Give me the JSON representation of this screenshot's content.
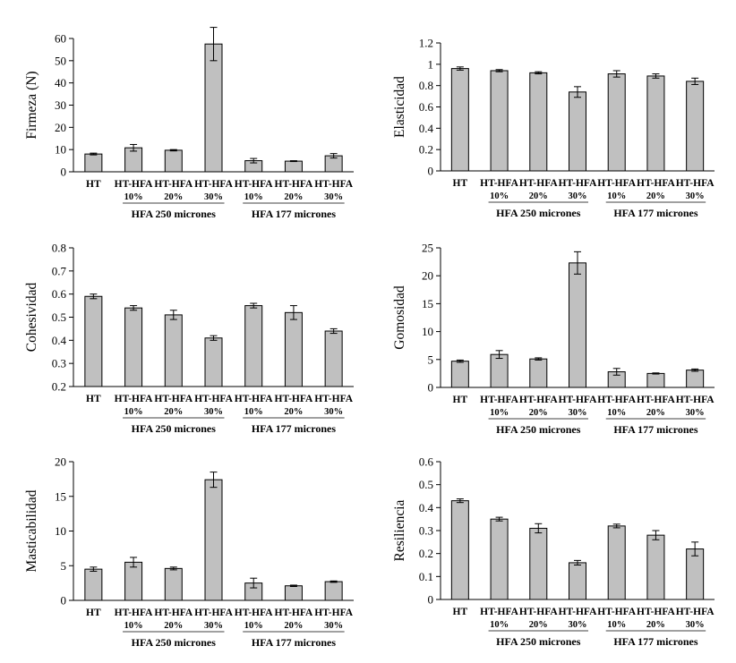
{
  "colors": {
    "bar": "#c0c0c0",
    "bar_stroke": "#000000"
  },
  "groups": [
    "HFA 250 micrones",
    "HFA 177 micrones"
  ],
  "chart_data": [
    {
      "type": "bar",
      "ylabel": "Firmeza (N)",
      "ylim": [
        0,
        60
      ],
      "yticks": [
        0,
        10,
        20,
        30,
        40,
        50,
        60
      ],
      "categories": [
        "HT",
        "HT-HFA",
        "HT-HFA",
        "HT-HFA",
        "HT-HFA",
        "HT-HFA",
        "HT-HFA"
      ],
      "subcategories": [
        "",
        "10%",
        "20%",
        "30%",
        "10%",
        "20%",
        "30%"
      ],
      "values": [
        8.0,
        10.8,
        9.7,
        57.5,
        5.0,
        4.8,
        7.2
      ],
      "errors": [
        0.4,
        1.5,
        0.3,
        7.5,
        1.0,
        0.2,
        1.0
      ]
    },
    {
      "type": "bar",
      "ylabel": "Elasticidad",
      "ylim": [
        0,
        1.2
      ],
      "yticks": [
        "0",
        "0.2",
        "0.4",
        "0.6",
        "0.8",
        "1",
        "1.2"
      ],
      "categories": [
        "HT",
        "HT-HFA",
        "HT-HFA",
        "HT-HFA",
        "HT-HFA",
        "HT-HFA",
        "HT-HFA"
      ],
      "subcategories": [
        "",
        "10%",
        "20%",
        "30%",
        "10%",
        "20%",
        "30%"
      ],
      "values": [
        0.96,
        0.94,
        0.92,
        0.74,
        0.91,
        0.89,
        0.84
      ],
      "errors": [
        0.015,
        0.01,
        0.01,
        0.05,
        0.03,
        0.02,
        0.03
      ]
    },
    {
      "type": "bar",
      "ylabel": "Cohesividad",
      "ylim": [
        0.2,
        0.8
      ],
      "yticks": [
        "0.2",
        "0.3",
        "0.4",
        "0.5",
        "0.6",
        "0.7",
        "0.8"
      ],
      "categories": [
        "HT",
        "HT-HFA",
        "HT-HFA",
        "HT-HFA",
        "HT-HFA",
        "HT-HFA",
        "HT-HFA"
      ],
      "subcategories": [
        "",
        "10%",
        "20%",
        "30%",
        "10%",
        "20%",
        "30%"
      ],
      "values": [
        0.59,
        0.54,
        0.51,
        0.41,
        0.55,
        0.52,
        0.44
      ],
      "errors": [
        0.01,
        0.01,
        0.02,
        0.01,
        0.01,
        0.03,
        0.01
      ]
    },
    {
      "type": "bar",
      "ylabel": "Gomosidad",
      "ylim": [
        0,
        25
      ],
      "yticks": [
        0,
        5,
        10,
        15,
        20,
        25
      ],
      "categories": [
        "HT",
        "HT-HFA",
        "HT-HFA",
        "HT-HFA",
        "HT-HFA",
        "HT-HFA",
        "HT-HFA"
      ],
      "subcategories": [
        "",
        "10%",
        "20%",
        "30%",
        "10%",
        "20%",
        "30%"
      ],
      "values": [
        4.7,
        5.9,
        5.1,
        22.3,
        2.8,
        2.5,
        3.1
      ],
      "errors": [
        0.2,
        0.7,
        0.2,
        2.0,
        0.6,
        0.1,
        0.2
      ]
    },
    {
      "type": "bar",
      "ylabel": "Masticabilidad",
      "ylim": [
        0,
        20
      ],
      "yticks": [
        0,
        5,
        10,
        15,
        20
      ],
      "categories": [
        "HT",
        "HT-HFA",
        "HT-HFA",
        "HT-HFA",
        "HT-HFA",
        "HT-HFA",
        "HT-HFA"
      ],
      "subcategories": [
        "",
        "10%",
        "20%",
        "30%",
        "10%",
        "20%",
        "30%"
      ],
      "values": [
        4.5,
        5.5,
        4.6,
        17.4,
        2.5,
        2.1,
        2.7
      ],
      "errors": [
        0.3,
        0.7,
        0.2,
        1.1,
        0.7,
        0.1,
        0.1
      ]
    },
    {
      "type": "bar",
      "ylabel": "Resiliencia",
      "ylim": [
        0,
        0.6
      ],
      "yticks": [
        "0",
        "0.1",
        "0.2",
        "0.3",
        "0.4",
        "0.5",
        "0.6"
      ],
      "categories": [
        "HT",
        "HT-HFA",
        "HT-HFA",
        "HT-HFA",
        "HT-HFA",
        "HT-HFA",
        "HT-HFA"
      ],
      "subcategories": [
        "",
        "10%",
        "20%",
        "30%",
        "10%",
        "20%",
        "30%"
      ],
      "values": [
        0.43,
        0.35,
        0.31,
        0.16,
        0.32,
        0.28,
        0.22
      ],
      "errors": [
        0.008,
        0.008,
        0.02,
        0.01,
        0.008,
        0.02,
        0.03
      ]
    }
  ]
}
